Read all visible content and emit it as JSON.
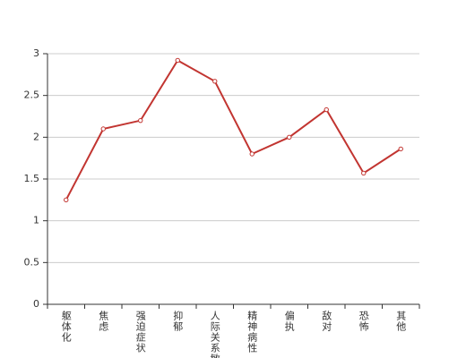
{
  "chart_data": {
    "type": "line",
    "categories": [
      "躯体化",
      "焦虑",
      "强迫症状",
      "抑郁",
      "人际关系敏感",
      "精神病性",
      "偏执",
      "敌对",
      "恐怖",
      "其他"
    ],
    "values": [
      1.25,
      2.1,
      2.2,
      2.92,
      2.67,
      1.8,
      2.0,
      2.33,
      1.57,
      1.86
    ],
    "color": "#c23531",
    "ylim": [
      0,
      3
    ],
    "yticks": [
      0,
      0.5,
      1,
      1.5,
      2,
      2.5,
      3
    ],
    "grid": true
  }
}
